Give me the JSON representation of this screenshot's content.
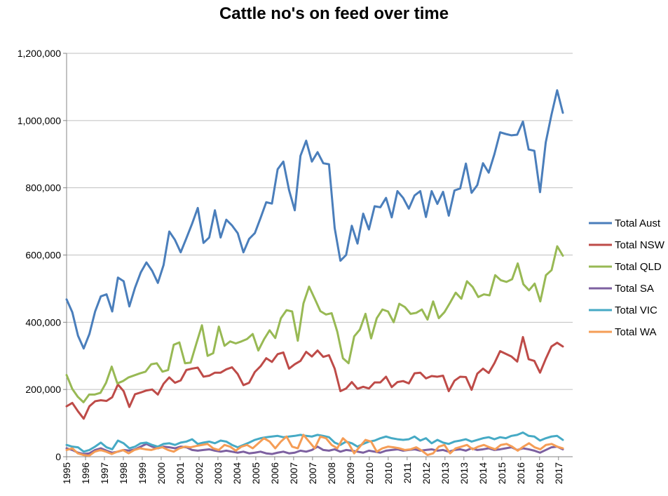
{
  "chart_data": {
    "type": "line",
    "title": "Cattle no's on feed over time",
    "xlabel": "",
    "ylabel": "",
    "ylim": [
      0,
      1200000
    ],
    "yticks": [
      0,
      200000,
      400000,
      600000,
      800000,
      1000000,
      1200000
    ],
    "ytick_labels": [
      "0",
      "200,000",
      "400,000",
      "600,000",
      "800,000",
      "1,000,000",
      "1,200,000"
    ],
    "x_range": [
      1995,
      2017.75
    ],
    "xtick_labels": [
      "1995",
      "1996",
      "1997",
      "1998",
      "1999",
      "2000",
      "2001",
      "2002",
      "2003",
      "2004",
      "2005",
      "2006",
      "2007",
      "2007",
      "2008",
      "2009",
      "2010",
      "2010",
      "2011",
      "2012",
      "2013",
      "2013",
      "2014",
      "2015",
      "2016",
      "2016",
      "2017"
    ],
    "grid": "horizontal",
    "legend_position": "right",
    "series": [
      {
        "name": "Total Aust",
        "color": "#4A7EBB",
        "values": [
          468000,
          430000,
          360000,
          322000,
          365000,
          432000,
          477000,
          483000,
          432000,
          533000,
          522000,
          447000,
          503000,
          548000,
          578000,
          553000,
          517000,
          570000,
          670000,
          645000,
          608000,
          650000,
          693000,
          740000,
          636000,
          652000,
          733000,
          652000,
          705000,
          688000,
          665000,
          608000,
          648000,
          665000,
          710000,
          757000,
          753000,
          855000,
          878000,
          793000,
          733000,
          895000,
          940000,
          878000,
          906000,
          873000,
          870000,
          680000,
          583000,
          600000,
          687000,
          634000,
          723000,
          676000,
          745000,
          742000,
          770000,
          712000,
          790000,
          770000,
          738000,
          777000,
          790000,
          713000,
          790000,
          752000,
          788000,
          717000,
          792000,
          798000,
          872000,
          785000,
          808000,
          873000,
          845000,
          900000,
          965000,
          960000,
          956000,
          958000,
          997000,
          914000,
          910000,
          787000,
          935000,
          1017000,
          1090000,
          1023000
        ]
      },
      {
        "name": "Total NSW",
        "color": "#BE4B48",
        "values": [
          150000,
          160000,
          135000,
          113000,
          150000,
          165000,
          168000,
          166000,
          177000,
          215000,
          195000,
          148000,
          186000,
          191000,
          197000,
          200000,
          185000,
          217000,
          236000,
          220000,
          227000,
          258000,
          262000,
          265000,
          238000,
          241000,
          250000,
          250000,
          260000,
          266000,
          246000,
          213000,
          220000,
          252000,
          269000,
          293000,
          282000,
          305000,
          310000,
          262000,
          275000,
          285000,
          312000,
          298000,
          316000,
          297000,
          302000,
          262000,
          195000,
          203000,
          222000,
          202000,
          208000,
          203000,
          221000,
          221000,
          238000,
          207000,
          222000,
          225000,
          218000,
          248000,
          250000,
          233000,
          240000,
          238000,
          241000,
          195000,
          226000,
          238000,
          237000,
          199000,
          247000,
          262000,
          249000,
          278000,
          314000,
          306000,
          298000,
          283000,
          356000,
          290000,
          285000,
          250000,
          291000,
          328000,
          339000,
          328000
        ]
      },
      {
        "name": "Total QLD",
        "color": "#98B954",
        "values": [
          243000,
          202000,
          178000,
          162000,
          185000,
          185000,
          190000,
          220000,
          268000,
          218000,
          225000,
          236000,
          242000,
          248000,
          253000,
          275000,
          278000,
          253000,
          258000,
          333000,
          340000,
          278000,
          280000,
          336000,
          391000,
          300000,
          308000,
          387000,
          330000,
          343000,
          337000,
          343000,
          350000,
          365000,
          316000,
          349000,
          376000,
          353000,
          412000,
          436000,
          432000,
          345000,
          456000,
          506000,
          470000,
          433000,
          423000,
          427000,
          372000,
          293000,
          278000,
          358000,
          378000,
          425000,
          352000,
          412000,
          438000,
          432000,
          400000,
          455000,
          445000,
          425000,
          428000,
          438000,
          408000,
          462000,
          412000,
          430000,
          458000,
          488000,
          470000,
          522000,
          505000,
          475000,
          483000,
          480000,
          540000,
          525000,
          520000,
          528000,
          575000,
          513000,
          495000,
          515000,
          462000,
          540000,
          555000,
          626000,
          598000
        ]
      },
      {
        "name": "Total SA",
        "color": "#7D60A0",
        "values": [
          25000,
          20000,
          12000,
          8000,
          10000,
          20000,
          25000,
          18000,
          12000,
          15000,
          20000,
          18000,
          22000,
          30000,
          38000,
          30000,
          25000,
          30000,
          28000,
          25000,
          30000,
          28000,
          20000,
          18000,
          20000,
          22000,
          18000,
          15000,
          18000,
          15000,
          12000,
          15000,
          10000,
          12000,
          15000,
          10000,
          8000,
          12000,
          15000,
          10000,
          12000,
          18000,
          15000,
          20000,
          30000,
          20000,
          18000,
          22000,
          15000,
          20000,
          18000,
          15000,
          12000,
          18000,
          15000,
          12000,
          18000,
          20000,
          22000,
          18000,
          20000,
          22000,
          18000,
          20000,
          22000,
          18000,
          20000,
          15000,
          20000,
          22000,
          18000,
          25000,
          20000,
          22000,
          25000,
          20000,
          22000,
          25000,
          28000,
          20000,
          25000,
          22000,
          18000,
          12000,
          20000,
          28000,
          30000,
          22000
        ]
      },
      {
        "name": "Total VIC",
        "color": "#46AAC5",
        "values": [
          35000,
          30000,
          28000,
          15000,
          20000,
          30000,
          42000,
          28000,
          22000,
          48000,
          40000,
          25000,
          30000,
          40000,
          42000,
          35000,
          30000,
          38000,
          40000,
          35000,
          42000,
          45000,
          52000,
          38000,
          42000,
          45000,
          40000,
          48000,
          45000,
          35000,
          28000,
          35000,
          42000,
          50000,
          55000,
          58000,
          60000,
          62000,
          58000,
          60000,
          62000,
          65000,
          62000,
          60000,
          65000,
          62000,
          58000,
          42000,
          35000,
          45000,
          40000,
          30000,
          38000,
          45000,
          48000,
          55000,
          60000,
          55000,
          52000,
          50000,
          52000,
          60000,
          48000,
          55000,
          40000,
          50000,
          42000,
          38000,
          45000,
          48000,
          52000,
          45000,
          50000,
          55000,
          58000,
          52000,
          58000,
          55000,
          62000,
          65000,
          72000,
          62000,
          60000,
          48000,
          55000,
          60000,
          62000,
          50000
        ]
      },
      {
        "name": "Total WA",
        "color": "#F59D56",
        "values": [
          20000,
          25000,
          10000,
          5000,
          3000,
          15000,
          20000,
          15000,
          8000,
          15000,
          20000,
          10000,
          20000,
          25000,
          22000,
          20000,
          25000,
          28000,
          20000,
          15000,
          25000,
          30000,
          28000,
          32000,
          35000,
          38000,
          25000,
          20000,
          35000,
          30000,
          18000,
          30000,
          35000,
          25000,
          40000,
          55000,
          45000,
          25000,
          45000,
          60000,
          30000,
          25000,
          65000,
          45000,
          25000,
          60000,
          55000,
          35000,
          25000,
          55000,
          40000,
          10000,
          30000,
          50000,
          45000,
          15000,
          25000,
          30000,
          28000,
          25000,
          20000,
          22000,
          28000,
          18000,
          5000,
          10000,
          30000,
          35000,
          10000,
          25000,
          30000,
          35000,
          22000,
          30000,
          35000,
          28000,
          22000,
          35000,
          38000,
          30000,
          18000,
          30000,
          40000,
          28000,
          22000,
          35000,
          38000,
          30000,
          25000
        ]
      }
    ]
  }
}
